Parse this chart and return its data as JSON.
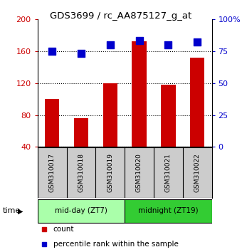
{
  "title": "GDS3699 / rc_AA875127_g_at",
  "samples": [
    "GSM310017",
    "GSM310018",
    "GSM310019",
    "GSM310020",
    "GSM310021",
    "GSM310022"
  ],
  "counts": [
    100,
    76,
    120,
    172,
    118,
    152
  ],
  "percentiles": [
    75,
    73,
    80,
    83,
    80,
    82
  ],
  "bar_color": "#cc0000",
  "dot_color": "#0000cc",
  "left_ylim": [
    40,
    200
  ],
  "left_yticks": [
    40,
    80,
    120,
    160,
    200
  ],
  "right_ylim": [
    0,
    100
  ],
  "right_yticks": [
    0,
    25,
    50,
    75,
    100
  ],
  "right_yticklabels": [
    "0",
    "25",
    "50",
    "75",
    "100%"
  ],
  "groups": [
    {
      "label": "mid-day (ZT7)",
      "indices": [
        0,
        1,
        2
      ],
      "color": "#aaffaa"
    },
    {
      "label": "midnight (ZT19)",
      "indices": [
        3,
        4,
        5
      ],
      "color": "#33cc33"
    }
  ],
  "time_label": "time",
  "legend_count_label": "count",
  "legend_pct_label": "percentile rank within the sample",
  "grid_color": "#000000",
  "bg_color": "#ffffff",
  "plot_bg": "#ffffff",
  "label_area_bg": "#cccccc",
  "bar_width": 0.5,
  "dot_size": 45
}
